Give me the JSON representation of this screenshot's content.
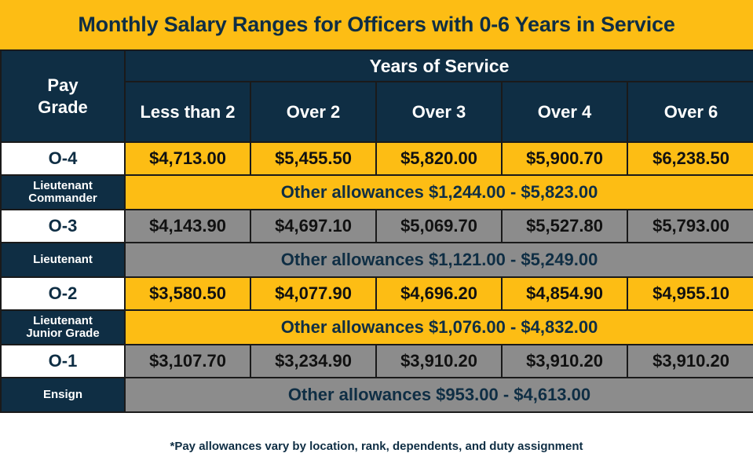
{
  "title": "Monthly Salary Ranges for Officers with 0-6 Years in Service",
  "footnote": "*Pay allowances vary by location, rank, dependents, and duty assignment",
  "chart_data": {
    "type": "table",
    "title": "Monthly Salary Ranges for Officers with 0-6 Years in Service",
    "row_header_label": [
      "Pay",
      "Grade"
    ],
    "column_group_label": "Years of Service",
    "columns": [
      "Less than 2",
      "Over 2",
      "Over 3",
      "Over 4",
      "Over 6"
    ],
    "rows": [
      {
        "grade": "O-4",
        "rank_lines": [
          "Lieutenant",
          "Commander"
        ],
        "values": [
          "$4,713.00",
          "$5,455.50",
          "$5,820.00",
          "$5,900.70",
          "$6,238.50"
        ],
        "allowances": "Other allowances $1,244.00 - $5,823.00"
      },
      {
        "grade": "O-3",
        "rank_lines": [
          "Lieutenant"
        ],
        "values": [
          "$4,143.90",
          "$4,697.10",
          "$5,069.70",
          "$5,527.80",
          "$5,793.00"
        ],
        "allowances": "Other allowances $1,121.00 - $5,249.00"
      },
      {
        "grade": "O-2",
        "rank_lines": [
          "Lieutenant",
          "Junior Grade"
        ],
        "values": [
          "$3,580.50",
          "$4,077.90",
          "$4,696.20",
          "$4,854.90",
          "$4,955.10"
        ],
        "allowances": "Other allowances $1,076.00 - $4,832.00"
      },
      {
        "grade": "O-1",
        "rank_lines": [
          "Ensign"
        ],
        "values": [
          "$3,107.70",
          "$3,234.90",
          "$3,910.20",
          "$3,910.20",
          "$3,910.20"
        ],
        "allowances": "Other allowances $953.00 - $4,613.00"
      }
    ]
  },
  "colors": {
    "navy": "#0f2e44",
    "gold": "#fdbd14",
    "gray": "#8c8c8c",
    "white": "#ffffff"
  }
}
